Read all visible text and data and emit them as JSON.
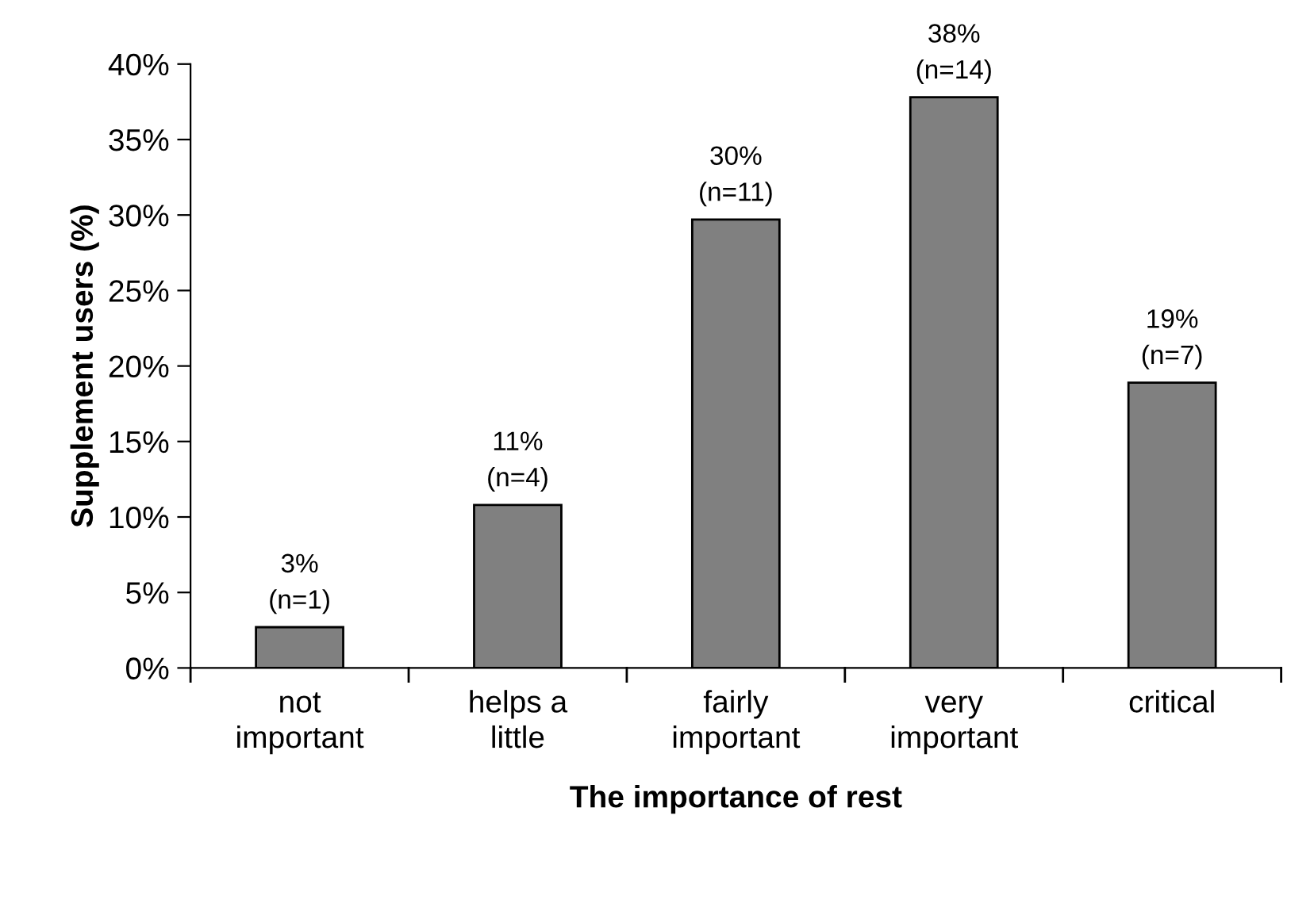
{
  "chart_data": {
    "type": "bar",
    "xlabel": "The importance of rest",
    "ylabel": "Supplement users (%)",
    "categories": [
      "not\nimportant",
      "helps a\nlittle",
      "fairly\nimportant",
      "very\nimportant",
      "critical"
    ],
    "values": [
      2.7,
      10.8,
      29.7,
      37.8,
      18.9
    ],
    "value_labels": [
      "3%\n(n=1)",
      "11%\n(n=4)",
      "30%\n(n=11)",
      "38%\n(n=14)",
      "19%\n(n=7)"
    ],
    "color": "#808080",
    "ylim": [
      0,
      40
    ],
    "yticks": [
      {
        "value": 0,
        "label": "0%"
      },
      {
        "value": 5,
        "label": "5%"
      },
      {
        "value": 10,
        "label": "10%"
      },
      {
        "value": 15,
        "label": "15%"
      },
      {
        "value": 20,
        "label": "20%"
      },
      {
        "value": 25,
        "label": "25%"
      },
      {
        "value": 30,
        "label": "30%"
      },
      {
        "value": 35,
        "label": "35%"
      },
      {
        "value": 40,
        "label": "40%"
      }
    ],
    "grid": false,
    "legend": false
  }
}
